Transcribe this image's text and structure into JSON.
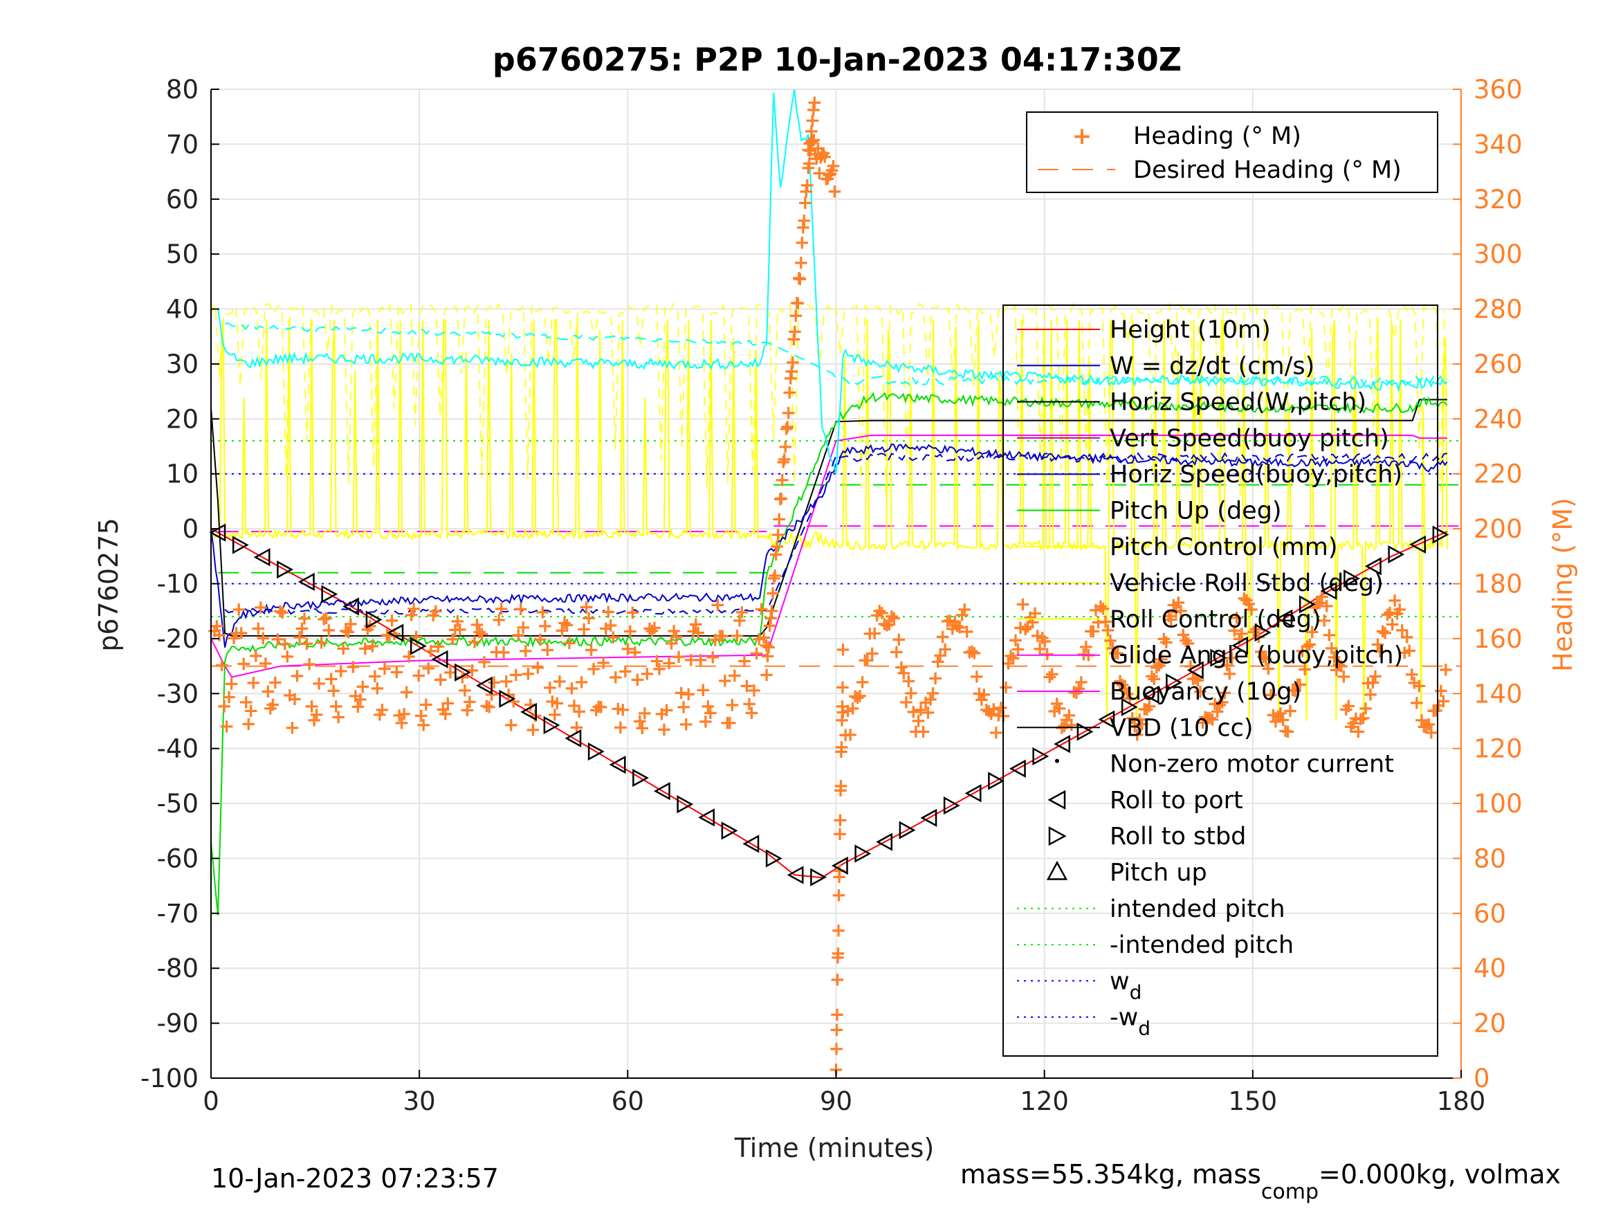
{
  "chart_data": {
    "type": "line",
    "title": "p6760275: P2P 10-Jan-2023 04:17:30Z",
    "xlabel": "Time (minutes)",
    "ylabel": "p6760275",
    "y2label": "Heading (°M)",
    "xlim": [
      0,
      180
    ],
    "ylim": [
      -100,
      80
    ],
    "y2lim": [
      0,
      360
    ],
    "xticks": [
      0,
      30,
      60,
      90,
      120,
      150,
      180
    ],
    "yticks": [
      -100,
      -90,
      -80,
      -70,
      -60,
      -50,
      -40,
      -30,
      -20,
      -10,
      0,
      10,
      20,
      30,
      40,
      50,
      60,
      70,
      80
    ],
    "y2ticks": [
      0,
      20,
      40,
      60,
      80,
      100,
      120,
      140,
      160,
      180,
      200,
      220,
      240,
      260,
      280,
      300,
      320,
      340,
      360
    ],
    "footer_left": "10-Jan-2023 07:23:57",
    "footer_right_parts": [
      "mass=55.354kg, mass",
      "comp",
      "=0.000kg, volmax"
    ],
    "colors": {
      "height": "#ff0000",
      "w": "#0000c8",
      "horiz_speed_w": "#000000",
      "vert_speed_buoy": "#c000c0",
      "horiz_speed_buoy": "#0000c8",
      "pitch_up": "#00dd00",
      "pitch_control": "#ffff00",
      "roll": "#ffff00",
      "glide": "#ff00ff",
      "buoyancy": "#ff00ff",
      "vbd": "#000000",
      "heading": "#ff7f27",
      "cyan": "#00ffff",
      "intended": "#00ee00",
      "wd": "#0000ff"
    },
    "legend_heading": {
      "placement": "top-right",
      "entries": [
        "Heading (° M)",
        "Desired Heading (° M)"
      ]
    },
    "legend_main": {
      "placement": "right",
      "entries": [
        "Height (10m)",
        "W = dz/dt (cm/s)",
        "Horiz Speed(W,pitch)",
        "Vert Speed(buoy pitch)",
        "Horiz Speed(buoy,pitch)",
        "Pitch Up (deg)",
        "Pitch Control (mm)",
        "Vehicle Roll Stbd (deg)",
        "Roll Control (deg)",
        "Glide Angle (buoy,pitch)",
        "Buoyancy (10g)",
        "VBD (10 cc)",
        "Non-zero motor current",
        "Roll to port",
        "Roll to stbd",
        "Pitch up",
        "intended pitch",
        "-intended pitch",
        "w",
        "-w"
      ],
      "subscript": "d"
    },
    "reference_lines": {
      "intended_pitch": 16,
      "neg_intended_pitch": -16,
      "wd": 10,
      "neg_wd": -10,
      "desired_heading": 150,
      "pitch_dive_dashed": -8,
      "pitch_climb_dashed": 8,
      "glide_dive_dashed": -0.5,
      "glide_climb_dashed": 0.5
    },
    "series": [
      {
        "name": "Height (10m)",
        "x": [
          0,
          5,
          10,
          20,
          30,
          40,
          50,
          60,
          70,
          80,
          84,
          88,
          91,
          100,
          110,
          120,
          130,
          140,
          150,
          160,
          170,
          178
        ],
        "y": [
          0,
          -3.5,
          -7,
          -14,
          -21.5,
          -29,
          -36.5,
          -44,
          -51.5,
          -59,
          -63,
          -63.5,
          -61,
          -55,
          -48,
          -41,
          -34,
          -27,
          -20,
          -12,
          -5,
          -0.5
        ]
      },
      {
        "name": "VBD (10 cc)",
        "x": [
          0,
          1,
          2,
          3,
          10,
          79,
          80,
          90,
          95,
          173,
          174,
          178
        ],
        "y": [
          22,
          5,
          -19,
          -19.5,
          -19.5,
          -19.5,
          -18,
          19.5,
          19.7,
          19.7,
          23.5,
          23.5
        ]
      },
      {
        "name": "Buoyancy (10g)",
        "x": [
          0,
          2,
          3,
          10,
          30,
          79,
          80,
          90,
          95,
          173,
          174,
          178
        ],
        "y": [
          -20,
          -25,
          -27,
          -25,
          -24,
          -23,
          -23,
          16,
          17,
          17,
          16.5,
          16.5
        ]
      },
      {
        "name": "Pitch Up (deg)",
        "x": [
          0,
          1,
          2,
          3,
          5,
          10,
          30,
          60,
          79,
          80,
          90,
          95,
          120,
          150,
          173,
          174,
          178
        ],
        "y": [
          -57,
          -70,
          -24,
          -21,
          -22,
          -21,
          -20.5,
          -20.5,
          -20.5,
          -8,
          20,
          24,
          23,
          22,
          22,
          23,
          23
        ]
      },
      {
        "name": "W = dz/dt (cm/s)",
        "x": [
          0,
          2,
          4,
          10,
          30,
          60,
          79,
          80,
          88,
          91,
          100,
          120,
          150,
          173,
          175,
          178
        ],
        "y": [
          0,
          -21,
          -16,
          -14,
          -13,
          -12.5,
          -12.5,
          -5,
          6,
          14,
          15,
          13,
          12,
          12,
          11,
          12
        ]
      },
      {
        "name": "cyan",
        "x": [
          1,
          2,
          5,
          10,
          30,
          60,
          79,
          80,
          81,
          82,
          84,
          85,
          86,
          88,
          90,
          91,
          95,
          110,
          130,
          150,
          170,
          178
        ],
        "y": [
          40,
          32,
          30,
          31,
          31,
          30,
          30,
          34,
          80,
          62,
          80,
          70,
          72,
          18,
          10,
          32,
          30,
          28,
          27,
          27,
          26,
          27
        ]
      }
    ]
  }
}
